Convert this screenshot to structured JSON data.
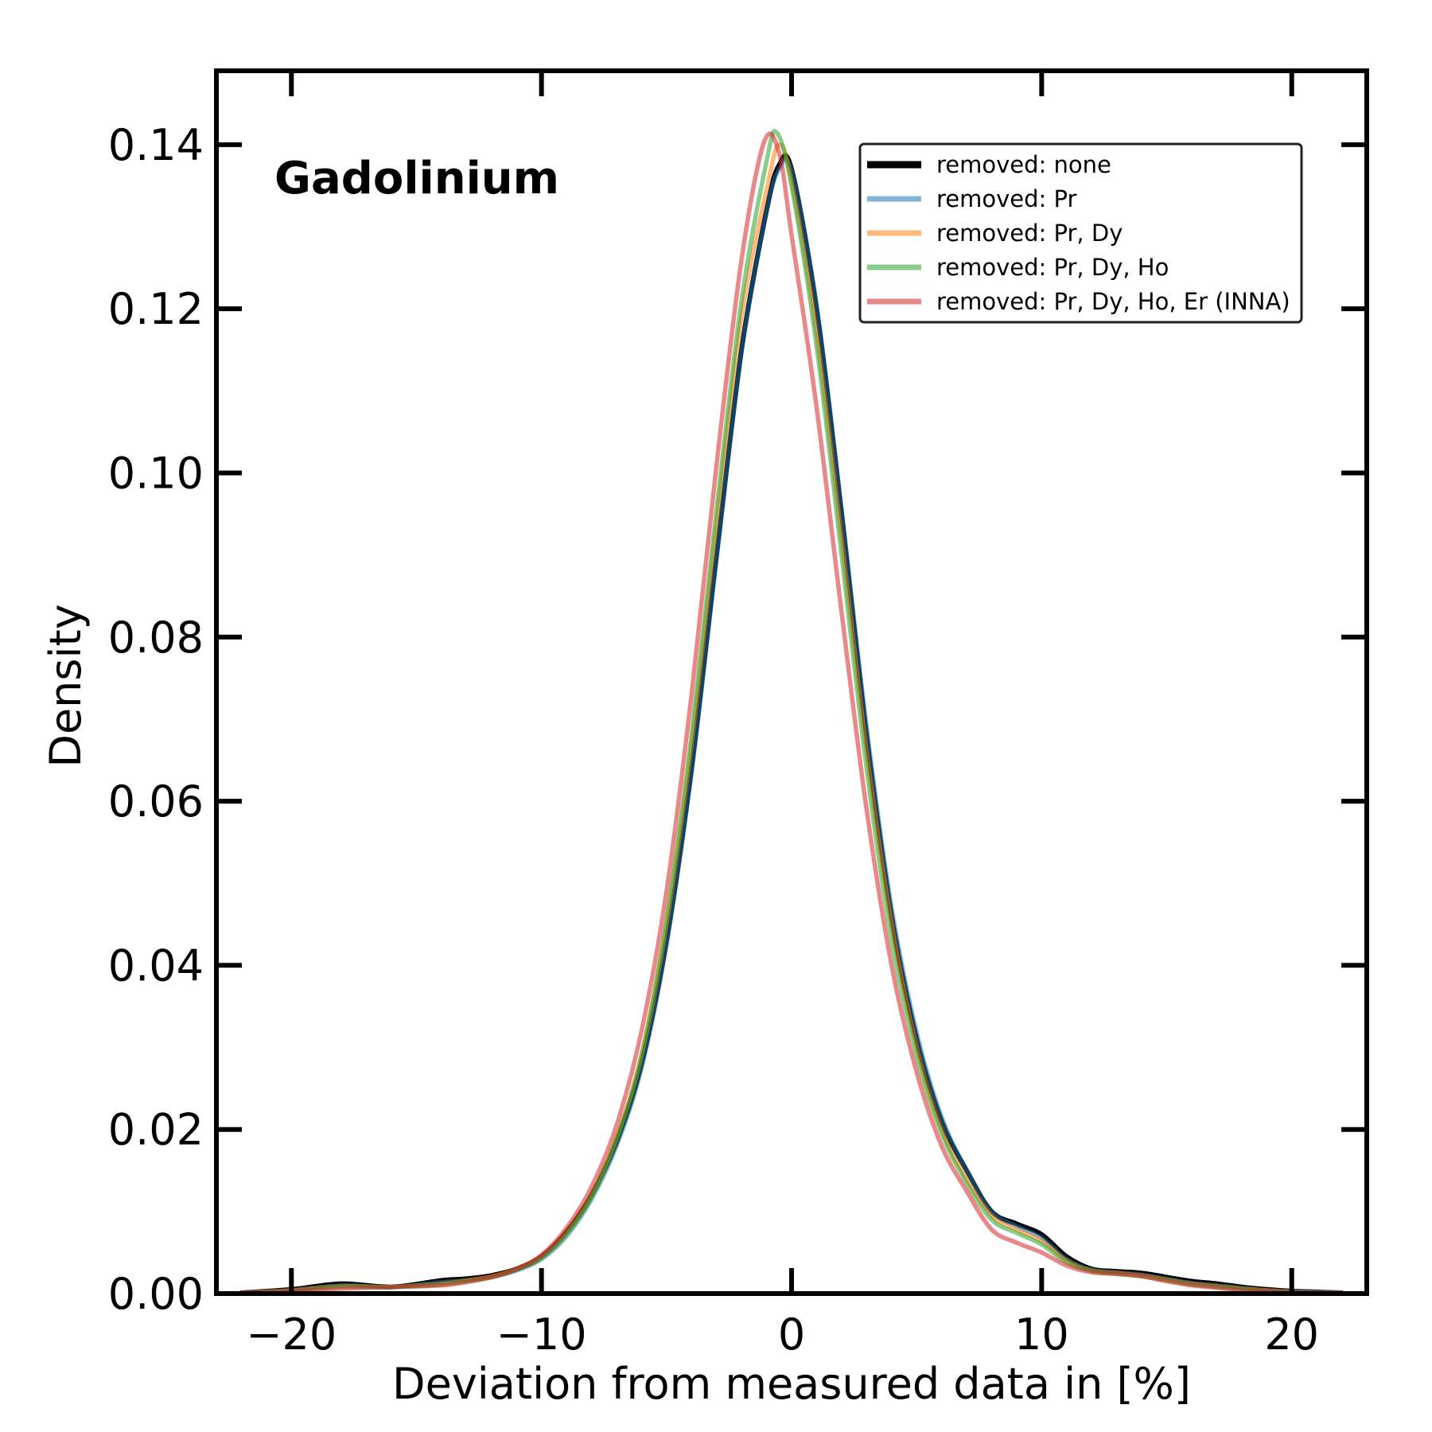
{
  "chart_data": {
    "type": "line",
    "annotation": "Gadolinium",
    "xlabel": "Deviation from measured data in [%]",
    "ylabel": "Density",
    "xlim": [
      -23,
      23
    ],
    "ylim": [
      0,
      0.149
    ],
    "xticks": [
      -20,
      -10,
      0,
      10,
      20
    ],
    "xtick_labels": [
      "−20",
      "−10",
      "0",
      "10",
      "20"
    ],
    "yticks": [
      0,
      0.02,
      0.04,
      0.06,
      0.08,
      0.1,
      0.12,
      0.14
    ],
    "ytick_labels": [
      "0.00",
      "0.02",
      "0.04",
      "0.06",
      "0.08",
      "0.10",
      "0.12",
      "0.14"
    ],
    "grid": false,
    "legend_position": "top-right",
    "series": [
      {
        "name": "removed: none",
        "color": "#000000",
        "x": [
          -22,
          -20,
          -18,
          -16,
          -14,
          -13,
          -12,
          -11,
          -10,
          -9,
          -8,
          -7,
          -6,
          -5,
          -4,
          -3,
          -2,
          -1,
          -0.5,
          0,
          1,
          2,
          3,
          4,
          5,
          6,
          7,
          8,
          9,
          10,
          11,
          12,
          13,
          14,
          15,
          16,
          17,
          18,
          19,
          20,
          21,
          22
        ],
        "y": [
          0.0001,
          0.0005,
          0.0012,
          0.0008,
          0.0016,
          0.0018,
          0.0022,
          0.003,
          0.0045,
          0.0075,
          0.012,
          0.0185,
          0.028,
          0.043,
          0.064,
          0.09,
          0.115,
          0.132,
          0.1375,
          0.137,
          0.12,
          0.095,
          0.068,
          0.046,
          0.031,
          0.021,
          0.015,
          0.01,
          0.0085,
          0.0072,
          0.0045,
          0.003,
          0.0027,
          0.0025,
          0.002,
          0.0015,
          0.0012,
          0.0008,
          0.0005,
          0.0003,
          0.0002,
          0.0001
        ]
      },
      {
        "name": "removed: Pr",
        "color": "#1f77b4",
        "x": [
          -22,
          -20,
          -18,
          -16,
          -14,
          -13,
          -12,
          -11,
          -10,
          -9,
          -8,
          -7,
          -6,
          -5,
          -4,
          -3,
          -2,
          -1,
          -0.5,
          0,
          1,
          2,
          3,
          4,
          5,
          6,
          7,
          8,
          9,
          10,
          11,
          12,
          13,
          14,
          15,
          16,
          17,
          18,
          19,
          20,
          21,
          22
        ],
        "y": [
          0.0001,
          0.0004,
          0.001,
          0.0008,
          0.0014,
          0.0016,
          0.002,
          0.0028,
          0.0042,
          0.007,
          0.0115,
          0.018,
          0.0275,
          0.0425,
          0.0635,
          0.0895,
          0.1148,
          0.1318,
          0.137,
          0.1368,
          0.1205,
          0.0955,
          0.069,
          0.047,
          0.0318,
          0.0215,
          0.015,
          0.01,
          0.0082,
          0.0068,
          0.0042,
          0.0029,
          0.0026,
          0.0023,
          0.0018,
          0.0013,
          0.001,
          0.0007,
          0.0004,
          0.0003,
          0.0002,
          0.0001
        ]
      },
      {
        "name": "removed: Pr, Dy",
        "color": "#ff7f0e",
        "x": [
          -22,
          -20,
          -18,
          -16,
          -14,
          -13,
          -12,
          -11,
          -10,
          -9,
          -8,
          -7,
          -6,
          -5,
          -4,
          -3,
          -2,
          -1,
          -0.5,
          0,
          1,
          2,
          3,
          4,
          5,
          6,
          7,
          8,
          9,
          10,
          11,
          12,
          13,
          14,
          15,
          16,
          17,
          18,
          19,
          20,
          21,
          22
        ],
        "y": [
          0.0001,
          0.0004,
          0.0009,
          0.0008,
          0.0012,
          0.0016,
          0.0021,
          0.003,
          0.0045,
          0.0074,
          0.012,
          0.019,
          0.029,
          0.045,
          0.067,
          0.094,
          0.119,
          0.1345,
          0.14,
          0.1355,
          0.117,
          0.092,
          0.066,
          0.045,
          0.03,
          0.02,
          0.014,
          0.0095,
          0.0078,
          0.0064,
          0.004,
          0.0028,
          0.0025,
          0.0022,
          0.0017,
          0.0012,
          0.0009,
          0.0006,
          0.0004,
          0.0002,
          0.0001,
          0.0001
        ]
      },
      {
        "name": "removed: Pr, Dy, Ho",
        "color": "#2ca02c",
        "x": [
          -22,
          -20,
          -18,
          -16,
          -14,
          -13,
          -12,
          -11,
          -10,
          -9,
          -8,
          -7,
          -6,
          -5,
          -4,
          -3,
          -2,
          -1,
          -0.6,
          0,
          1,
          2,
          3,
          4,
          5,
          6,
          7,
          8,
          9,
          10,
          11,
          12,
          13,
          14,
          15,
          16,
          17,
          18,
          19,
          20,
          21,
          22
        ],
        "y": [
          0.0001,
          0.0003,
          0.0008,
          0.0008,
          0.0011,
          0.0015,
          0.002,
          0.0029,
          0.0044,
          0.0073,
          0.0118,
          0.0188,
          0.029,
          0.0455,
          0.068,
          0.0955,
          0.121,
          0.138,
          0.1415,
          0.135,
          0.1155,
          0.09,
          0.064,
          0.043,
          0.029,
          0.0195,
          0.0135,
          0.009,
          0.0074,
          0.006,
          0.0038,
          0.0027,
          0.0024,
          0.0021,
          0.0016,
          0.0011,
          0.0008,
          0.0005,
          0.0003,
          0.0002,
          0.0001,
          0.0001
        ]
      },
      {
        "name": "removed: Pr, Dy, Ho, Er (INNA)",
        "color": "#d62728",
        "x": [
          -22,
          -20,
          -18,
          -16,
          -14,
          -13,
          -12,
          -11,
          -10,
          -9,
          -8,
          -7,
          -6,
          -5,
          -4,
          -3,
          -2,
          -1.1,
          -0.5,
          0,
          1,
          2,
          3,
          4,
          5,
          6,
          7,
          8,
          9,
          10,
          11,
          12,
          13,
          14,
          15,
          16,
          17,
          18,
          19,
          20,
          21,
          22
        ],
        "y": [
          0.0001,
          0.0003,
          0.0006,
          0.0008,
          0.001,
          0.0014,
          0.002,
          0.003,
          0.0047,
          0.008,
          0.013,
          0.0205,
          0.032,
          0.049,
          0.073,
          0.101,
          0.126,
          0.1403,
          0.139,
          0.129,
          0.108,
          0.083,
          0.059,
          0.04,
          0.027,
          0.018,
          0.0125,
          0.0078,
          0.0062,
          0.005,
          0.0034,
          0.0026,
          0.0024,
          0.0021,
          0.0015,
          0.001,
          0.0007,
          0.0004,
          0.0003,
          0.0002,
          0.0001,
          0.0001
        ]
      }
    ]
  }
}
